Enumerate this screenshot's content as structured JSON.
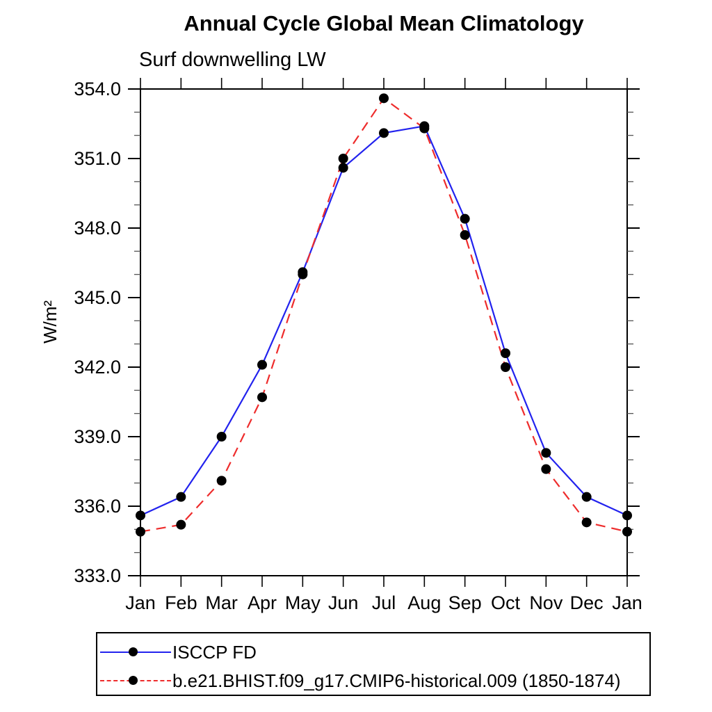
{
  "chart_data": {
    "type": "line",
    "title": "Annual Cycle Global Mean Climatology",
    "subtitle": "Surf downwelling LW",
    "ylabel": "W/m²",
    "xlabel": "",
    "categories": [
      "Jan",
      "Feb",
      "Mar",
      "Apr",
      "May",
      "Jun",
      "Jul",
      "Aug",
      "Sep",
      "Oct",
      "Nov",
      "Dec",
      "Jan"
    ],
    "ylim": [
      333.0,
      354.0
    ],
    "y_major_ticks": [
      333.0,
      336.0,
      339.0,
      342.0,
      345.0,
      348.0,
      351.0,
      354.0
    ],
    "y_major_tick_labels": [
      "333.0",
      "336.0",
      "339.0",
      "342.0",
      "345.0",
      "348.0",
      "351.0",
      "354.0"
    ],
    "y_minor_step": 1.0,
    "grid": false,
    "frame": true,
    "legend_position": "bottom-left-box",
    "axis_color": "#000000",
    "marker_color": "#000000",
    "series": [
      {
        "name": "ISCCP FD",
        "color": "#2222ee",
        "style": "solid",
        "marker": "circle",
        "values": [
          335.6,
          336.4,
          339.0,
          342.1,
          346.1,
          350.6,
          352.1,
          352.4,
          348.4,
          342.6,
          338.3,
          336.4,
          335.6
        ]
      },
      {
        "name": "b.e21.BHIST.f09_g17.CMIP6-historical.009 (1850-1874)",
        "color": "#ee2c2c",
        "style": "dashed",
        "marker": "circle",
        "values": [
          334.9,
          335.2,
          337.1,
          340.7,
          346.0,
          351.0,
          353.6,
          352.3,
          347.7,
          342.0,
          337.6,
          335.3,
          334.9
        ]
      }
    ]
  }
}
